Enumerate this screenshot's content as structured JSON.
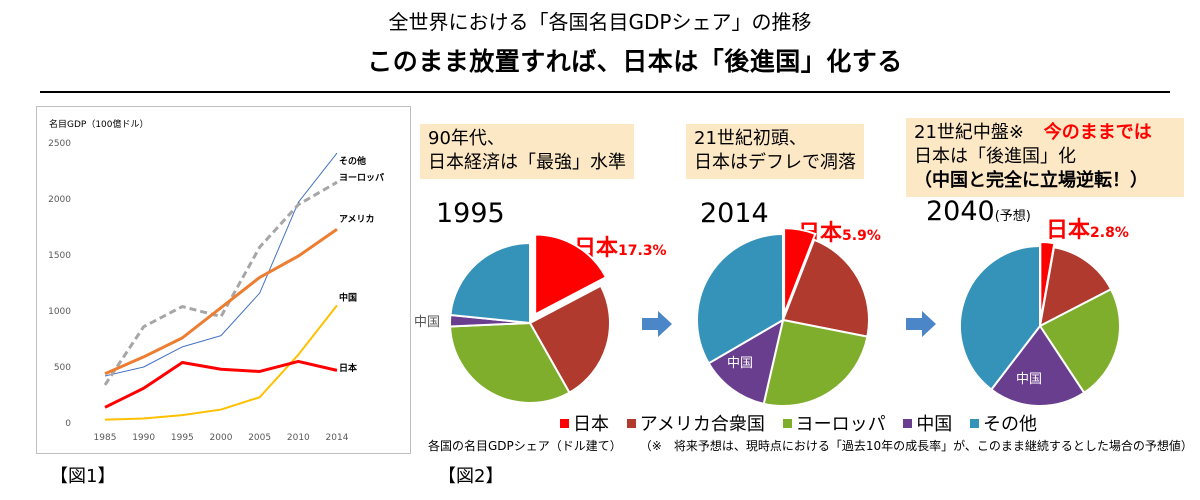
{
  "header": {
    "title": "全世界における「各国名目GDPシェア」の推移",
    "subtitle": "このまま放置すれば、日本は「後進国」化する"
  },
  "fig1": {
    "label": "【図1】",
    "axis_title": "名目GDP（100億ドル）"
  },
  "fig2": {
    "label": "【図2】",
    "boxes": [
      {
        "line1": "90年代、",
        "line2": "日本経済は「最強」水準"
      },
      {
        "line1": "21世紀初頭、",
        "line2": "日本はデフレで凋落"
      },
      {
        "line1": "21世紀中盤※",
        "line1_red": "今のままでは",
        "line2": "日本は「後進国」化",
        "line3": "（中国と完全に立場逆転！）"
      }
    ],
    "years": [
      "1995",
      "2014",
      "2040"
    ],
    "year_suffix": "(予想)",
    "japan_name": "日本",
    "japan_values": [
      "17.3%",
      "5.9%",
      "2.8%"
    ],
    "china_label": "中国",
    "note_left": "各国の名目GDPシェア（ドル建て）",
    "note_right": "（※　将来予想は、現時点における「過去10年の成長率」が、このまま継続するとした場合の予想値）"
  },
  "colors": {
    "japan": "#ff0000",
    "america": "#b03a2e",
    "europe": "#7fad2c",
    "china": "#6a3e8e",
    "other": "#3592b9",
    "box_bg": "#fde8c6",
    "arrow": "#4a86c8",
    "line_other": "#4472c4",
    "line_europe": "#a6a6a6",
    "line_america": "#ed7d31",
    "line_china": "#ffc000",
    "line_japan": "#ff0000"
  },
  "chart_data": [
    {
      "type": "line",
      "title": "",
      "ylabel": "名目GDP（100億ドル）",
      "x": [
        "1985",
        "1990",
        "1995",
        "2000",
        "2005",
        "2010",
        "2014"
      ],
      "ylim": [
        0,
        2500
      ],
      "yticks": [
        0,
        500,
        1000,
        1500,
        2000,
        2500
      ],
      "grid": false,
      "series": [
        {
          "name": "その他",
          "values": [
            420,
            500,
            680,
            780,
            1160,
            1970,
            2410
          ],
          "color": "#4472c4",
          "style": "thin"
        },
        {
          "name": "ヨーロッパ",
          "values": [
            340,
            860,
            1040,
            950,
            1570,
            1950,
            2150
          ],
          "color": "#a6a6a6",
          "style": "dashed"
        },
        {
          "name": "アメリカ",
          "values": [
            440,
            590,
            760,
            1030,
            1300,
            1490,
            1730
          ],
          "color": "#ed7d31",
          "style": "thick"
        },
        {
          "name": "中国",
          "values": [
            30,
            40,
            70,
            120,
            230,
            610,
            1050
          ],
          "color": "#ffc000",
          "style": "normal"
        },
        {
          "name": "日本",
          "values": [
            140,
            310,
            540,
            480,
            460,
            550,
            470
          ],
          "color": "#ff0000",
          "style": "thick"
        }
      ]
    },
    {
      "type": "pie",
      "title": "1995",
      "categories": [
        "日本",
        "アメリカ合衆国",
        "ヨーロッパ",
        "中国",
        "その他"
      ],
      "values": [
        17.3,
        24.5,
        32.5,
        2.3,
        23.4
      ]
    },
    {
      "type": "pie",
      "title": "2014",
      "categories": [
        "日本",
        "アメリカ合衆国",
        "ヨーロッパ",
        "中国",
        "その他"
      ],
      "values": [
        5.9,
        22.2,
        25.5,
        13.0,
        33.4
      ]
    },
    {
      "type": "pie",
      "title": "2040(予想)",
      "categories": [
        "日本",
        "アメリカ合衆国",
        "ヨーロッパ",
        "中国",
        "その他"
      ],
      "values": [
        2.8,
        14.6,
        23.3,
        19.7,
        39.6
      ]
    }
  ]
}
